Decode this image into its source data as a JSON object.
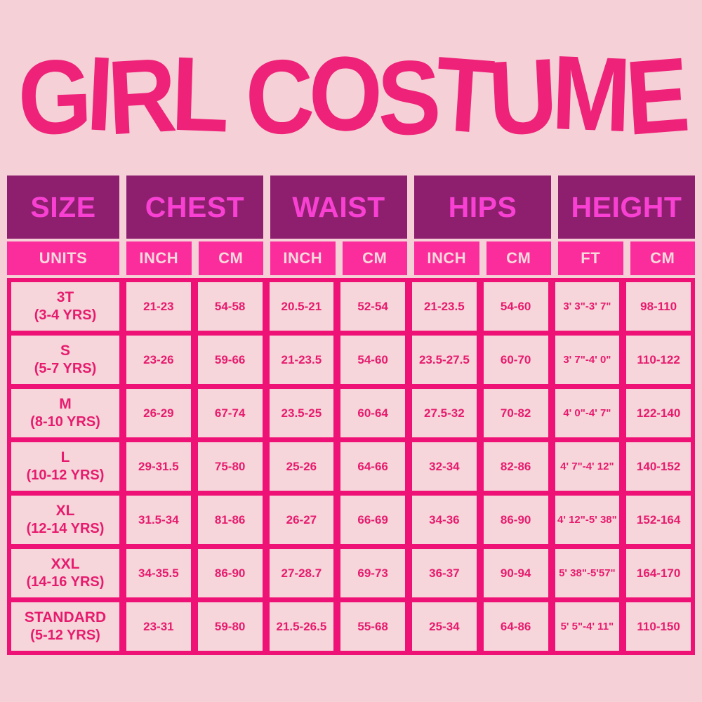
{
  "colors": {
    "page_bg": "#f5d1d7",
    "title": "#ee2278",
    "header_bg": "#8d1f6e",
    "header_text": "#f841d3",
    "units_bg": "#fb2d9d",
    "units_text": "#f8d9dc",
    "grid": "#ef1276",
    "cell_bg": "#f6d6da",
    "value_text": "#e71b6e"
  },
  "chart_data": {
    "type": "table",
    "title": "GIRL COSTUME",
    "column_groups": [
      {
        "label": "SIZE",
        "span": 1
      },
      {
        "label": "CHEST",
        "span": 2
      },
      {
        "label": "WAIST",
        "span": 2
      },
      {
        "label": "HIPS",
        "span": 2
      },
      {
        "label": "HEIGHT",
        "span": 2
      }
    ],
    "unit_headers": [
      "UNITS",
      "INCH",
      "CM",
      "INCH",
      "CM",
      "INCH",
      "CM",
      "FT",
      "CM"
    ],
    "rows": [
      {
        "size": "3T",
        "age": "(3-4 YRS)",
        "values": [
          "21-23",
          "54-58",
          "20.5-21",
          "52-54",
          "21-23.5",
          "54-60",
          "3' 3\"-3' 7\"",
          "98-110"
        ]
      },
      {
        "size": "S",
        "age": "(5-7 YRS)",
        "values": [
          "23-26",
          "59-66",
          "21-23.5",
          "54-60",
          "23.5-27.5",
          "60-70",
          "3' 7\"-4' 0\"",
          "110-122"
        ]
      },
      {
        "size": "M",
        "age": "(8-10 YRS)",
        "values": [
          "26-29",
          "67-74",
          "23.5-25",
          "60-64",
          "27.5-32",
          "70-82",
          "4' 0\"-4' 7\"",
          "122-140"
        ]
      },
      {
        "size": "L",
        "age": "(10-12 YRS)",
        "values": [
          "29-31.5",
          "75-80",
          "25-26",
          "64-66",
          "32-34",
          "82-86",
          "4' 7\"-4' 12\"",
          "140-152"
        ]
      },
      {
        "size": "XL",
        "age": "(12-14 YRS)",
        "values": [
          "31.5-34",
          "81-86",
          "26-27",
          "66-69",
          "34-36",
          "86-90",
          "4' 12\"-5' 38\"",
          "152-164"
        ]
      },
      {
        "size": "XXL",
        "age": "(14-16 YRS)",
        "values": [
          "34-35.5",
          "86-90",
          "27-28.7",
          "69-73",
          "36-37",
          "90-94",
          "5' 38\"-5'57\"",
          "164-170"
        ]
      },
      {
        "size": "STANDARD",
        "age": "(5-12 YRS)",
        "values": [
          "23-31",
          "59-80",
          "21.5-26.5",
          "55-68",
          "25-34",
          "64-86",
          "5' 5\"-4' 11\"",
          "110-150"
        ]
      }
    ]
  }
}
